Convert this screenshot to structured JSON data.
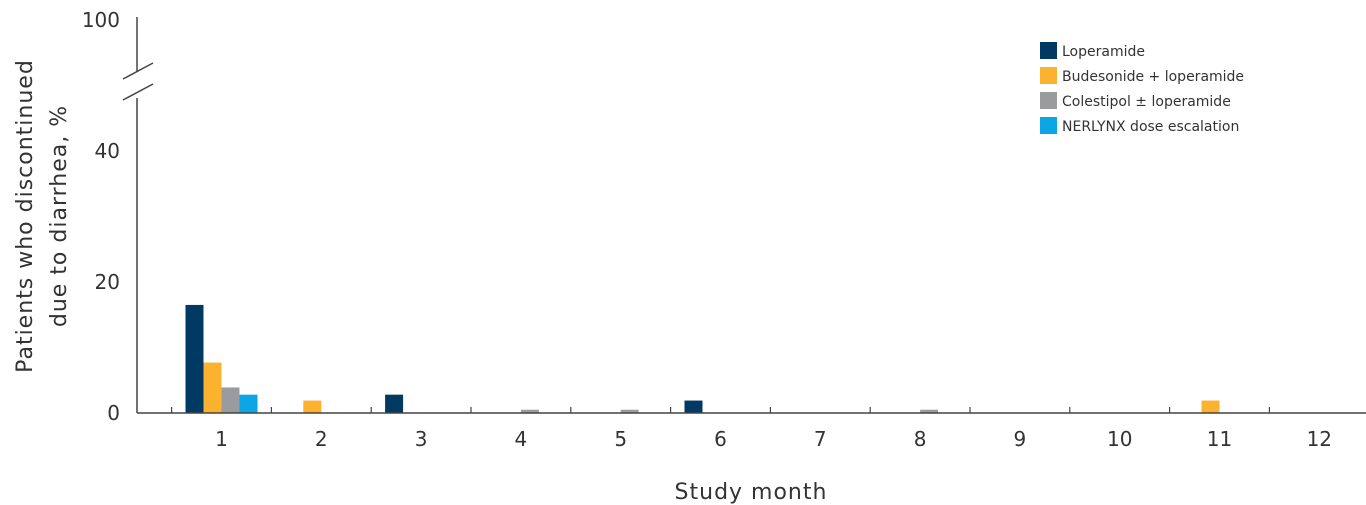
{
  "chart_data": {
    "type": "bar",
    "xlabel": "Study month",
    "ylabel_lines": [
      "Patients who discontinued",
      "due to diarrhea, %"
    ],
    "categories": [
      "1",
      "2",
      "3",
      "4",
      "5",
      "6",
      "7",
      "8",
      "9",
      "10",
      "11",
      "12"
    ],
    "y_ticks": [
      "0",
      "20",
      "40",
      "100"
    ],
    "ylim": [
      0,
      100
    ],
    "axis_break": true,
    "legend_position": "top-right",
    "series": [
      {
        "name": "Loperamide",
        "color": "#003a63",
        "values": [
          16.5,
          0,
          2.8,
          0,
          0,
          1.9,
          0,
          0,
          0,
          0,
          0,
          0
        ]
      },
      {
        "name": "Budesonide + loperamide",
        "color": "#fbb32f",
        "values": [
          7.7,
          1.9,
          0,
          0,
          0,
          0,
          0,
          0,
          0,
          0,
          1.9,
          0
        ]
      },
      {
        "name": "Colestipol ± loperamide",
        "color": "#999b9e",
        "values": [
          3.9,
          0,
          0,
          0.5,
          0.5,
          0,
          0,
          0.5,
          0,
          0,
          0,
          0
        ]
      },
      {
        "name": "NERLYNX dose escalation",
        "color": "#0aa6e6",
        "values": [
          2.8,
          0,
          0,
          0,
          0,
          0,
          0,
          0,
          0,
          0,
          0,
          0
        ]
      }
    ]
  }
}
